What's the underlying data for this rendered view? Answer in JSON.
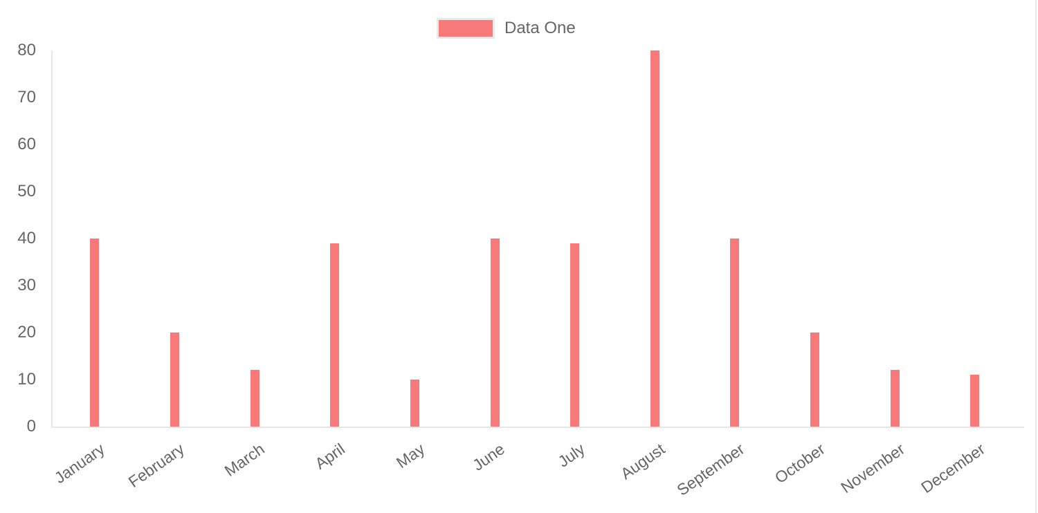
{
  "chart_data": {
    "type": "bar",
    "title": "",
    "xlabel": "",
    "ylabel": "",
    "categories": [
      "January",
      "February",
      "March",
      "April",
      "May",
      "June",
      "July",
      "August",
      "September",
      "October",
      "November",
      "December"
    ],
    "series": [
      {
        "name": "Data One",
        "color": "#f87979",
        "values": [
          40,
          20,
          12,
          39,
          10,
          40,
          39,
          80,
          40,
          20,
          12,
          11
        ]
      }
    ],
    "ylim": [
      0,
      80
    ],
    "yticks": [
      0,
      10,
      20,
      30,
      40,
      50,
      60,
      70,
      80
    ],
    "grid": false,
    "legend_position": "top",
    "x_tick_rotation_deg": 35,
    "colors": {
      "bar": "#f87979",
      "axis_line": "#e6e6e6",
      "tick_text": "#666666",
      "legend_text": "#666666",
      "legend_swatch_border": "#e9e9e9",
      "background": "#ffffff"
    }
  }
}
